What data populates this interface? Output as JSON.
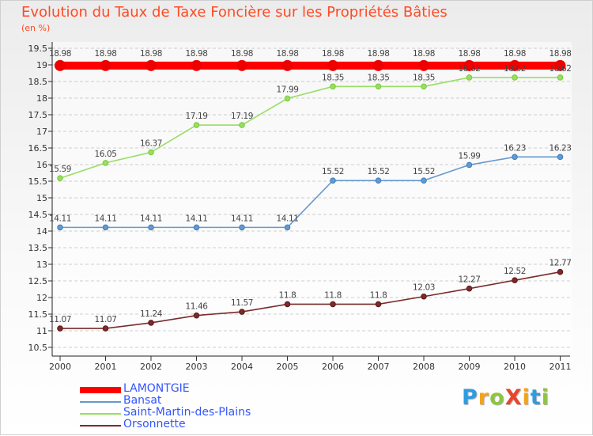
{
  "chart_data": {
    "type": "line",
    "title": "Evolution du Taux de Taxe Foncière sur les Propriétés Bâties",
    "unit_label": "(en %)",
    "xlabel": "",
    "ylabel": "",
    "categories": [
      "2000",
      "2001",
      "2002",
      "2003",
      "2004",
      "2005",
      "2006",
      "2007",
      "2008",
      "2009",
      "2010",
      "2011"
    ],
    "ylim": [
      10.5,
      19.5
    ],
    "yticks": [
      10.5,
      11,
      11.5,
      12,
      12.5,
      13,
      13.5,
      14,
      14.5,
      15,
      15.5,
      16,
      16.5,
      17,
      17.5,
      18,
      18.5,
      19,
      19.5
    ],
    "ytick_labels": [
      "10.5",
      "11",
      "11.5",
      "12",
      "12.5",
      "13",
      "13.5",
      "14",
      "14.5",
      "15",
      "15.5",
      "16",
      "16.5",
      "17",
      "17.5",
      "18",
      "18.5",
      "19",
      "19.5"
    ],
    "grid": "horizontal dashed",
    "legend_position": "bottom-left",
    "series": [
      {
        "name": "LAMONTGIE",
        "color": "#ff0000",
        "emphasis": "thick",
        "values": [
          18.98,
          18.98,
          18.98,
          18.98,
          18.98,
          18.98,
          18.98,
          18.98,
          18.98,
          18.98,
          18.98,
          18.98
        ],
        "labels": [
          "18.98",
          "18.98",
          "18.98",
          "18.98",
          "18.98",
          "18.98",
          "18.98",
          "18.98",
          "18.98",
          "18.98",
          "18.98",
          "18.98"
        ]
      },
      {
        "name": "Bansat",
        "color": "#6699cc",
        "marker": "#3b7fc4",
        "values": [
          14.11,
          14.11,
          14.11,
          14.11,
          14.11,
          14.11,
          15.52,
          15.52,
          15.52,
          15.99,
          16.23,
          16.23
        ],
        "labels": [
          "14.11",
          "14.11",
          "14.11",
          "14.11",
          "14.11",
          "14.11",
          "15.52",
          "15.52",
          "15.52",
          "15.99",
          "16.23",
          "16.23"
        ]
      },
      {
        "name": "Saint-Martin-des-Plains",
        "color": "#99dd66",
        "marker": "#77cc33",
        "values": [
          15.59,
          16.05,
          16.37,
          17.19,
          17.19,
          17.99,
          18.35,
          18.35,
          18.35,
          18.62,
          18.62,
          18.62
        ],
        "labels": [
          "15.59",
          "16.05",
          "16.37",
          "17.19",
          "17.19",
          "17.99",
          "18.35",
          "18.35",
          "18.35",
          "18.62",
          "18.62",
          "18.62"
        ]
      },
      {
        "name": "Orsonnette",
        "color": "#7a2c2c",
        "marker": "#5e1515",
        "values": [
          11.07,
          11.07,
          11.24,
          11.46,
          11.57,
          11.8,
          11.8,
          11.8,
          12.03,
          12.27,
          12.52,
          12.77
        ],
        "labels": [
          "11.07",
          "11.07",
          "11.24",
          "11.46",
          "11.57",
          "11.8",
          "11.8",
          "11.8",
          "12.03",
          "12.27",
          "12.52",
          "12.77"
        ]
      }
    ]
  },
  "logo": {
    "text": "ProXiti",
    "letters": [
      "P",
      "r",
      "o",
      "X",
      "i",
      "t",
      "i"
    ],
    "colors": [
      "#2f9be0",
      "#f2a21b",
      "#8cc63f",
      "#e8452c",
      "#f2a21b",
      "#2f9be0",
      "#8cc63f"
    ]
  }
}
